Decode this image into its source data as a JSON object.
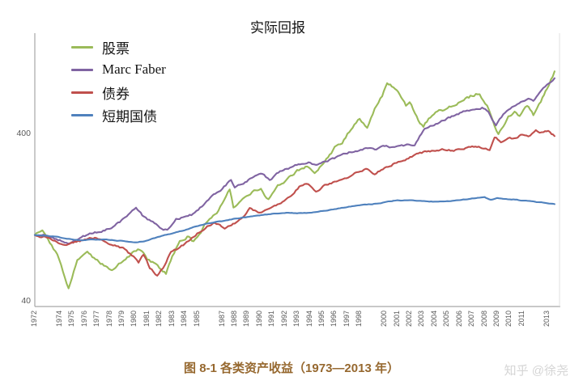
{
  "caption": "图 8-1 各类资产收益（1973—2013 年）",
  "watermark": "知乎 @徐尧",
  "colors": {
    "stocks": "#9BBB59",
    "marc_faber": "#8064A2",
    "bonds": "#C0504D",
    "tbills": "#4F81BD",
    "axis": "#A6A6A6",
    "tick_text": "#595959",
    "caption_text": "#96682F",
    "watermark_text": "#D5D5D5"
  },
  "chart_data": {
    "type": "line",
    "title": "实际回报",
    "xlabel": "",
    "ylabel": "",
    "y_scale": "log",
    "y_ticks": [
      400,
      40
    ],
    "ylim": [
      36,
      1100
    ],
    "x_range": [
      1972,
      2013.8
    ],
    "grid": "off",
    "legend_position": "top-left",
    "axis_color": "#A6A6A6",
    "x_ticks": [
      "1972",
      "1974",
      "1975",
      "1976",
      "1977",
      "1978",
      "1979",
      "1980",
      "1981",
      "1982",
      "1983",
      "1984",
      "1985",
      "1987",
      "1988",
      "1989",
      "1990",
      "1991",
      "1992",
      "1993",
      "1994",
      "1995",
      "1996",
      "1997",
      "1998",
      "2000",
      "2001",
      "2002",
      "2003",
      "2004",
      "2005",
      "2006",
      "2007",
      "2008",
      "2009",
      "2010",
      "2011",
      "2013"
    ],
    "series": [
      {
        "key": "stocks",
        "name": "股票",
        "color": "#9BBB59",
        "noise": 1.5,
        "points": [
          [
            1972,
            100
          ],
          [
            1972.6,
            104
          ],
          [
            1973.2,
            90
          ],
          [
            1973.8,
            76
          ],
          [
            1974.7,
            48
          ],
          [
            1975.4,
            70
          ],
          [
            1976.2,
            77
          ],
          [
            1977,
            70
          ],
          [
            1977.8,
            64
          ],
          [
            1978.3,
            62
          ],
          [
            1979,
            70
          ],
          [
            1979.8,
            78
          ],
          [
            1980.4,
            82
          ],
          [
            1981,
            72
          ],
          [
            1981.7,
            66
          ],
          [
            1982.5,
            59
          ],
          [
            1983,
            74
          ],
          [
            1983.6,
            92
          ],
          [
            1984.2,
            98
          ],
          [
            1984.7,
            91
          ],
          [
            1985.3,
            105
          ],
          [
            1986,
            128
          ],
          [
            1986.7,
            140
          ],
          [
            1987.6,
            190
          ],
          [
            1987.9,
            148
          ],
          [
            1988.5,
            158
          ],
          [
            1989.4,
            182
          ],
          [
            1990.1,
            188
          ],
          [
            1990.7,
            163
          ],
          [
            1991.3,
            195
          ],
          [
            1992.2,
            215
          ],
          [
            1993,
            240
          ],
          [
            1993.8,
            255
          ],
          [
            1994.4,
            240
          ],
          [
            1995.2,
            275
          ],
          [
            1996,
            330
          ],
          [
            1996.6,
            360
          ],
          [
            1997.3,
            430
          ],
          [
            1998,
            500
          ],
          [
            1998.6,
            435
          ],
          [
            1999.2,
            570
          ],
          [
            1999.8,
            680
          ],
          [
            2000.2,
            820
          ],
          [
            2000.7,
            760
          ],
          [
            2001.2,
            690
          ],
          [
            2001.7,
            600
          ],
          [
            2002,
            640
          ],
          [
            2002.7,
            480
          ],
          [
            2003.1,
            450
          ],
          [
            2003.8,
            525
          ],
          [
            2004.5,
            550
          ],
          [
            2005.3,
            585
          ],
          [
            2006.2,
            640
          ],
          [
            2007,
            680
          ],
          [
            2007.6,
            710
          ],
          [
            2008.2,
            590
          ],
          [
            2008.8,
            445
          ],
          [
            2009.1,
            395
          ],
          [
            2009.9,
            505
          ],
          [
            2010.4,
            545
          ],
          [
            2010.8,
            515
          ],
          [
            2011.4,
            595
          ],
          [
            2011.9,
            525
          ],
          [
            2012.5,
            625
          ],
          [
            2013,
            760
          ],
          [
            2013.6,
            950
          ]
        ]
      },
      {
        "key": "marc-faber",
        "name": "Marc Faber",
        "color": "#8064A2",
        "noise": 1.05,
        "points": [
          [
            1972,
            100
          ],
          [
            1973,
            99
          ],
          [
            1974,
            93
          ],
          [
            1974.8,
            89
          ],
          [
            1975.6,
            97
          ],
          [
            1976.4,
            101
          ],
          [
            1977.2,
            105
          ],
          [
            1978,
            110
          ],
          [
            1978.8,
            120
          ],
          [
            1979.5,
            133
          ],
          [
            1980.1,
            146
          ],
          [
            1980.6,
            131
          ],
          [
            1981.3,
            121
          ],
          [
            1982,
            112
          ],
          [
            1982.6,
            107
          ],
          [
            1983.3,
            124
          ],
          [
            1984,
            129
          ],
          [
            1984.8,
            134
          ],
          [
            1985.5,
            152
          ],
          [
            1986.3,
            174
          ],
          [
            1987,
            190
          ],
          [
            1987.7,
            212
          ],
          [
            1988,
            192
          ],
          [
            1988.7,
            202
          ],
          [
            1989.5,
            225
          ],
          [
            1990.2,
            230
          ],
          [
            1990.8,
            213
          ],
          [
            1991.5,
            237
          ],
          [
            1992.3,
            250
          ],
          [
            1993.1,
            264
          ],
          [
            1993.9,
            274
          ],
          [
            1994.5,
            258
          ],
          [
            1995.3,
            274
          ],
          [
            1996.1,
            290
          ],
          [
            1997,
            308
          ],
          [
            1997.8,
            320
          ],
          [
            1998.5,
            332
          ],
          [
            1999.2,
            322
          ],
          [
            2000,
            340
          ],
          [
            2000.8,
            332
          ],
          [
            2001.5,
            342
          ],
          [
            2002.4,
            348
          ],
          [
            2003.2,
            430
          ],
          [
            2004.7,
            485
          ],
          [
            2005.5,
            512
          ],
          [
            2006.3,
            545
          ],
          [
            2007.2,
            568
          ],
          [
            2007.8,
            575
          ],
          [
            2008.3,
            540
          ],
          [
            2008.9,
            450
          ],
          [
            2009.5,
            525
          ],
          [
            2010.2,
            580
          ],
          [
            2010.9,
            625
          ],
          [
            2011.5,
            655
          ],
          [
            2011.9,
            635
          ],
          [
            2012.4,
            700
          ],
          [
            2013,
            790
          ],
          [
            2013.6,
            865
          ]
        ]
      },
      {
        "key": "bonds",
        "name": "债券",
        "color": "#C0504D",
        "noise": 1.05,
        "points": [
          [
            1972,
            100
          ],
          [
            1972.8,
            97
          ],
          [
            1973.6,
            92
          ],
          [
            1974.4,
            88
          ],
          [
            1975.2,
            91
          ],
          [
            1976,
            94
          ],
          [
            1976.8,
            96
          ],
          [
            1977.6,
            91
          ],
          [
            1978.4,
            87
          ],
          [
            1979.2,
            82
          ],
          [
            1979.9,
            74
          ],
          [
            1980.3,
            69
          ],
          [
            1980.7,
            76
          ],
          [
            1981.2,
            64
          ],
          [
            1981.8,
            57
          ],
          [
            1982.4,
            66
          ],
          [
            1982.9,
            80
          ],
          [
            1983.6,
            84
          ],
          [
            1984.3,
            92
          ],
          [
            1985,
            102
          ],
          [
            1985.8,
            112
          ],
          [
            1986.4,
            120
          ],
          [
            1987.2,
            110
          ],
          [
            1988,
            118
          ],
          [
            1988.8,
            130
          ],
          [
            1989.2,
            143
          ],
          [
            1990,
            136
          ],
          [
            1990.9,
            148
          ],
          [
            1991.7,
            155
          ],
          [
            1992.5,
            172
          ],
          [
            1993.3,
            198
          ],
          [
            1993.9,
            203
          ],
          [
            1994.5,
            180
          ],
          [
            1995.2,
            200
          ],
          [
            1996,
            208
          ],
          [
            1996.8,
            218
          ],
          [
            1997.6,
            232
          ],
          [
            1998.5,
            248
          ],
          [
            1999.2,
            232
          ],
          [
            2000,
            252
          ],
          [
            2000.8,
            268
          ],
          [
            2001.5,
            280
          ],
          [
            2002.3,
            298
          ],
          [
            2003.1,
            312
          ],
          [
            2003.9,
            318
          ],
          [
            2004.6,
            325
          ],
          [
            2005.4,
            320
          ],
          [
            2006.2,
            328
          ],
          [
            2007,
            342
          ],
          [
            2007.8,
            335
          ],
          [
            2008.4,
            325
          ],
          [
            2008.8,
            388
          ],
          [
            2009.3,
            362
          ],
          [
            2009.9,
            385
          ],
          [
            2010.4,
            375
          ],
          [
            2010.9,
            398
          ],
          [
            2011.5,
            388
          ],
          [
            2012.1,
            420
          ],
          [
            2012.7,
            408
          ],
          [
            2013.1,
            418
          ],
          [
            2013.6,
            390
          ]
        ]
      },
      {
        "key": "tbills",
        "name": "短期国债",
        "color": "#4F81BD",
        "noise": 0.3,
        "points": [
          [
            1972,
            100
          ],
          [
            1973,
            99
          ],
          [
            1974,
            97
          ],
          [
            1975,
            94
          ],
          [
            1975.8,
            93
          ],
          [
            1976.6,
            94
          ],
          [
            1977.5,
            94
          ],
          [
            1978.3,
            93
          ],
          [
            1979.1,
            92
          ],
          [
            1980,
            90
          ],
          [
            1980.8,
            92
          ],
          [
            1981.6,
            96
          ],
          [
            1982.4,
            100
          ],
          [
            1983.2,
            103
          ],
          [
            1984,
            107
          ],
          [
            1984.8,
            112
          ],
          [
            1985.6,
            116
          ],
          [
            1986.4,
            119
          ],
          [
            1987.2,
            122
          ],
          [
            1988,
            125
          ],
          [
            1989,
            128
          ],
          [
            1990,
            131
          ],
          [
            1991,
            134
          ],
          [
            1992,
            136
          ],
          [
            1993,
            135
          ],
          [
            1994,
            136
          ],
          [
            1995,
            139
          ],
          [
            1996,
            143
          ],
          [
            1997,
            147
          ],
          [
            1998,
            151
          ],
          [
            1999,
            153
          ],
          [
            2000,
            157
          ],
          [
            2001,
            161
          ],
          [
            2002,
            161
          ],
          [
            2003,
            160
          ],
          [
            2004,
            158
          ],
          [
            2005,
            159
          ],
          [
            2006,
            162
          ],
          [
            2007,
            165
          ],
          [
            2008,
            168
          ],
          [
            2008.5,
            162
          ],
          [
            2009,
            166
          ],
          [
            2009.6,
            164
          ],
          [
            2010.3,
            163
          ],
          [
            2011,
            161
          ],
          [
            2012,
            158
          ],
          [
            2013,
            155
          ],
          [
            2013.6,
            153
          ]
        ]
      }
    ]
  }
}
